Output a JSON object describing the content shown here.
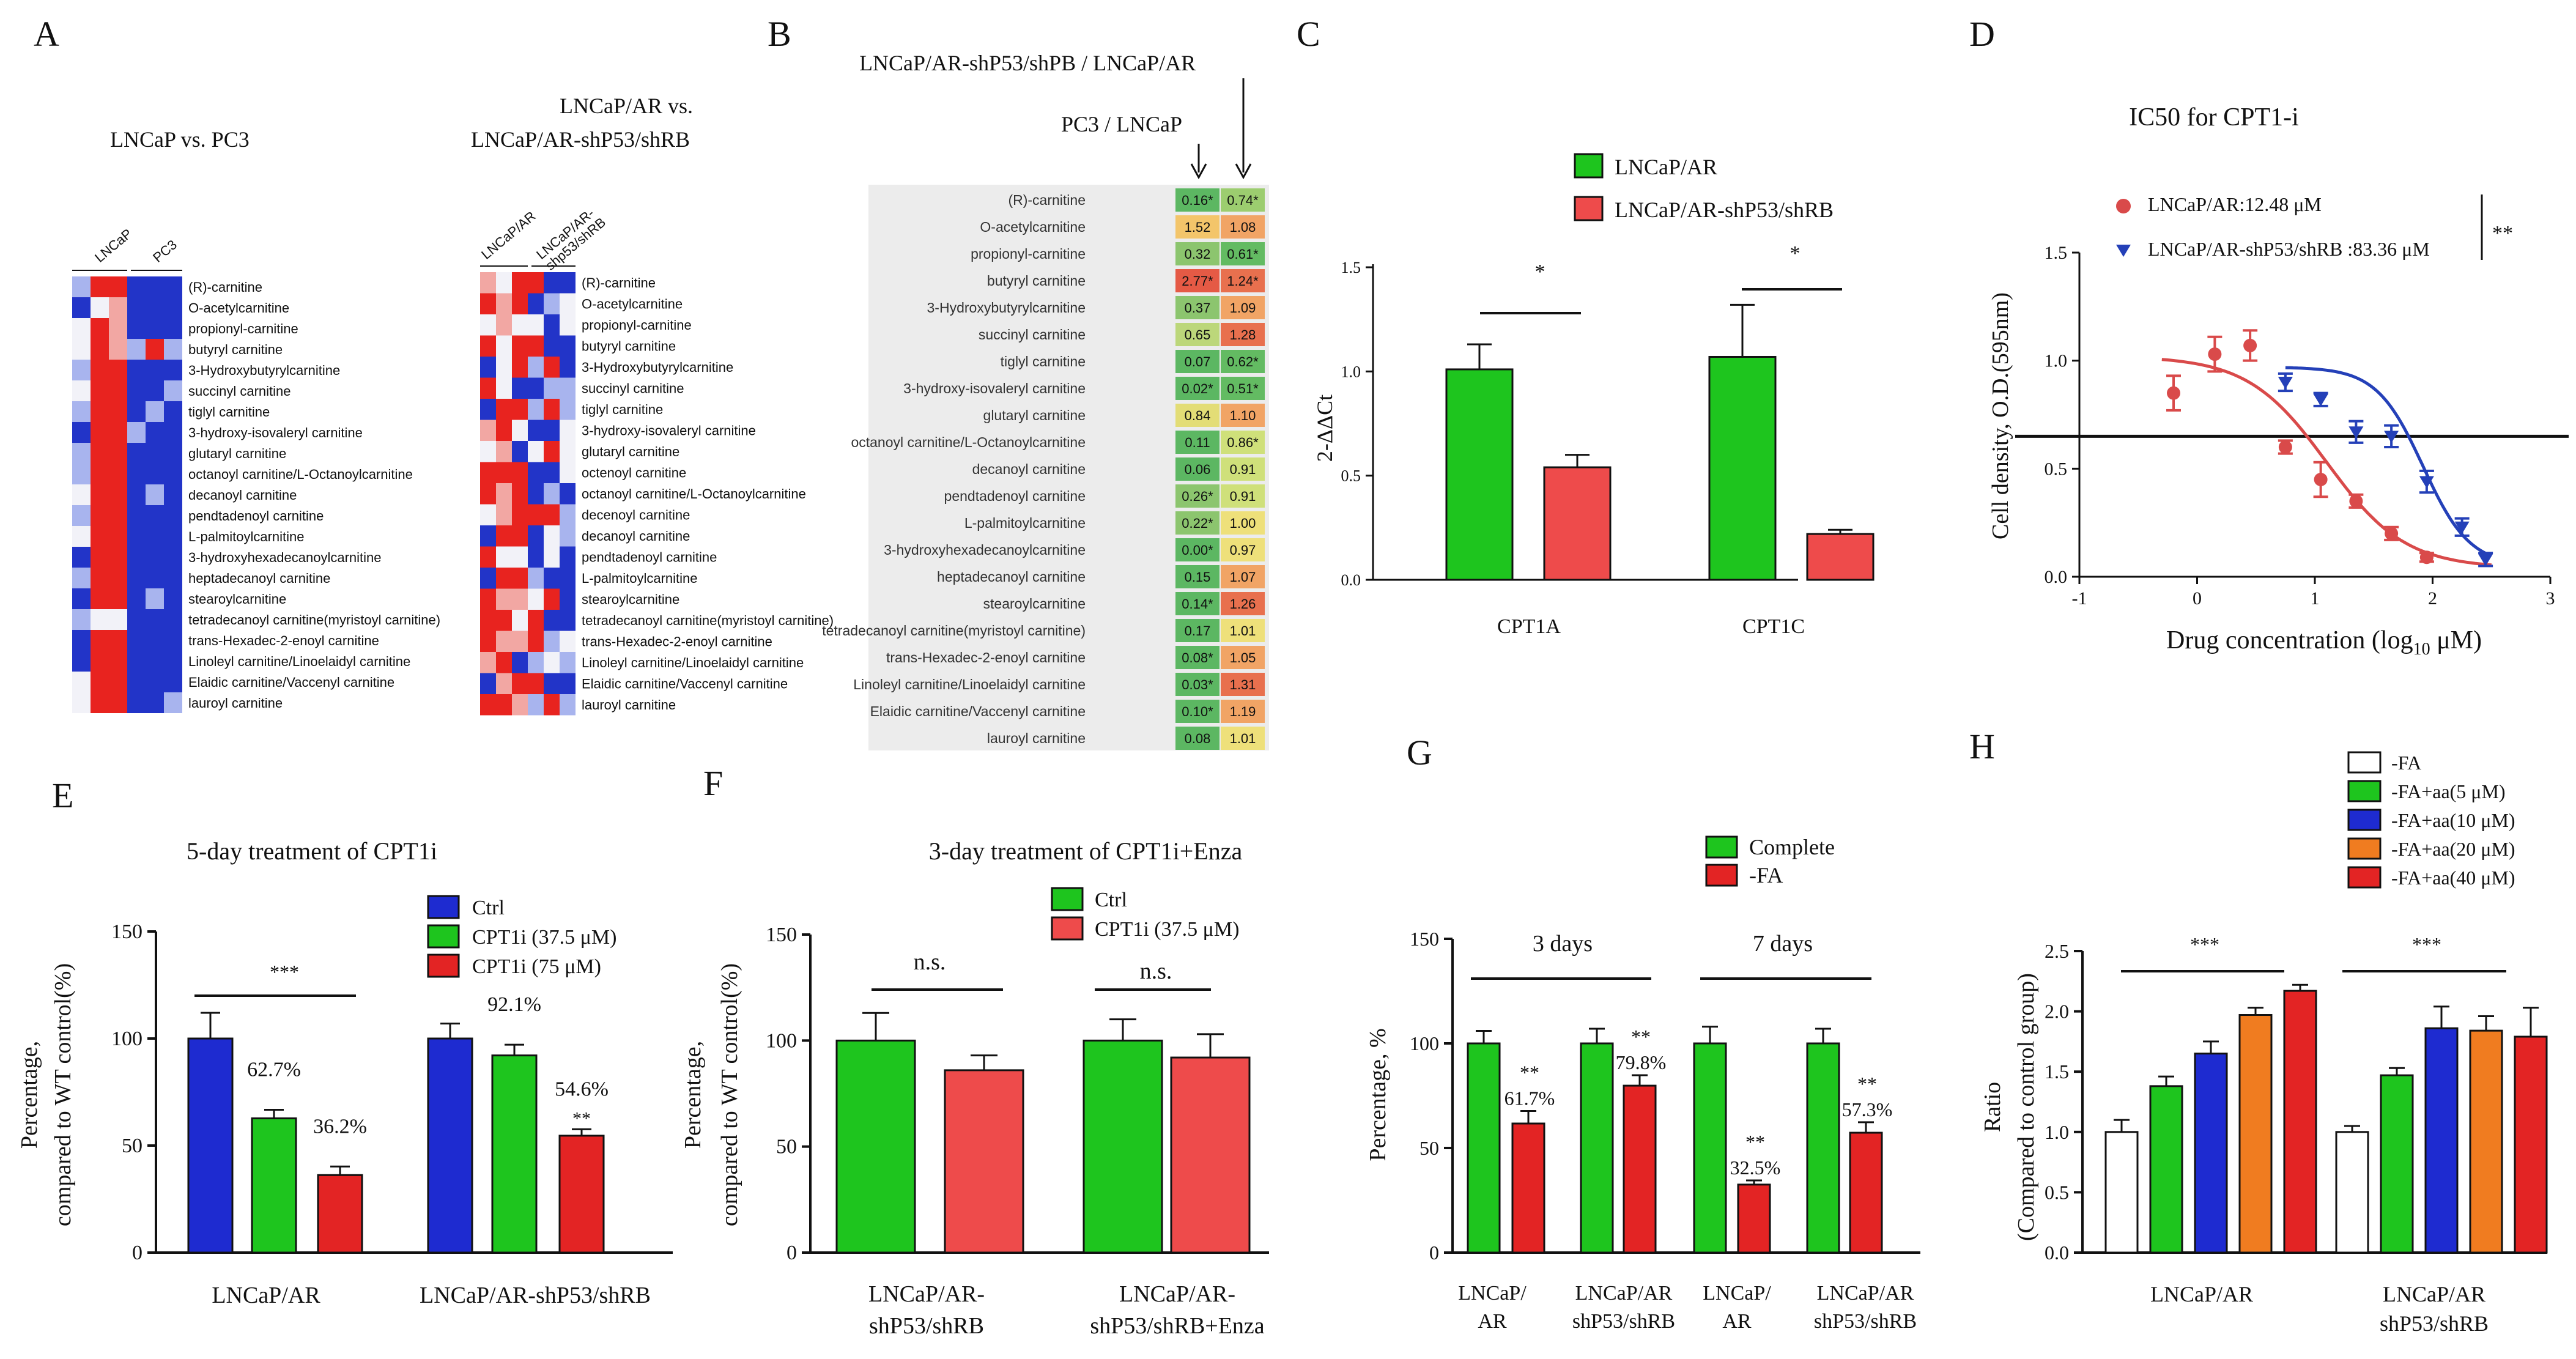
{
  "panels": {
    "A": {
      "letter": "A",
      "left_title": "LNCaP  vs. PC3",
      "right_title_1": "LNCaP/AR   vs.",
      "right_title_2": "LNCaP/AR-shP53/shRB",
      "left_col_labels": [
        "LNCaP",
        "PC3"
      ],
      "right_col_labels": [
        "LNCaP/AR",
        "LNCaP/AR-",
        "shp53/shRB"
      ],
      "left_rows": [
        "(R)-carnitine",
        "O-acetylcarnitine",
        "propionyl-carnitine",
        "butyryl carnitine",
        "3-Hydroxybutyrylcarnitine",
        "succinyl carnitine",
        "tiglyl carnitine",
        "3-hydroxy-isovaleryl carnitine",
        "glutaryl carnitine",
        "octanoyl carnitine/L-Octanoylcarnitine",
        "decanoyl carnitine",
        "pendtadenoyl carnitine",
        "L-palmitoylcarnitine",
        "3-hydroxyhexadecanoylcarnitine",
        "heptadecanoyl carnitine",
        "stearoylcarnitine",
        "tetradecanoyl carnitine(myristoyl carnitine)",
        "trans-Hexadec-2-enoyl carnitine",
        "Linoleyl carnitine/Linoelaidyl carnitine",
        "Elaidic carnitine/Vaccenyl carnitine",
        "lauroyl carnitine"
      ],
      "right_rows": [
        "(R)-carnitine",
        "O-acetylcarnitine",
        "propionyl-carnitine",
        "butyryl carnitine",
        "3-Hydroxybutyrylcarnitine",
        "succinyl carnitine",
        "tiglyl carnitine",
        "3-hydroxy-isovaleryl carnitine",
        "glutaryl carnitine",
        "octenoyl carnitine",
        "octanoyl carnitine/L-Octanoylcarnitine",
        "decenoyl carnitine",
        "decanoyl carnitine",
        "pendtadenoyl carnitine",
        "L-palmitoylcarnitine",
        "stearoylcarnitine",
        "tetradecanoyl carnitine(myristoyl carnitine)",
        "trans-Hexadec-2-enoyl carnitine",
        "Linoleyl carnitine/Linoelaidyl carnitine",
        "Elaidic carnitine/Vaccenyl carnitine",
        "lauroyl carnitine"
      ]
    },
    "B": {
      "letter": "B",
      "top_label": "LNCaP/AR-shP53/shPB   /  LNCaP/AR",
      "second_label": "PC3  / LNCaP",
      "rows": [
        {
          "name": "(R)-carnitine",
          "v1": "0.16*",
          "v2": "0.74*"
        },
        {
          "name": "O-acetylcarnitine",
          "v1": "1.52",
          "v2": "1.08"
        },
        {
          "name": "propionyl-carnitine",
          "v1": "0.32",
          "v2": "0.61*"
        },
        {
          "name": "butyryl carnitine",
          "v1": "2.77*",
          "v2": "1.24*"
        },
        {
          "name": "3-Hydroxybutyrylcarnitine",
          "v1": "0.37",
          "v2": "1.09"
        },
        {
          "name": "succinyl carnitine",
          "v1": "0.65",
          "v2": "1.28"
        },
        {
          "name": "tiglyl carnitine",
          "v1": "0.07",
          "v2": "0.62*"
        },
        {
          "name": "3-hydroxy-isovaleryl carnitine",
          "v1": "0.02*",
          "v2": "0.51*"
        },
        {
          "name": "glutaryl carnitine",
          "v1": "0.84",
          "v2": "1.10"
        },
        {
          "name": "octanoyl carnitine/L-Octanoylcarnitine",
          "v1": "0.11",
          "v2": "0.86*"
        },
        {
          "name": "decanoyl carnitine",
          "v1": "0.06",
          "v2": "0.91"
        },
        {
          "name": "pendtadenoyl carnitine",
          "v1": "0.26*",
          "v2": "0.91"
        },
        {
          "name": "L-palmitoylcarnitine",
          "v1": "0.22*",
          "v2": "1.00"
        },
        {
          "name": "3-hydroxyhexadecanoylcarnitine",
          "v1": "0.00*",
          "v2": "0.97"
        },
        {
          "name": "heptadecanoyl carnitine",
          "v1": "0.15",
          "v2": "1.07"
        },
        {
          "name": "stearoylcarnitine",
          "v1": "0.14*",
          "v2": "1.26"
        },
        {
          "name": "tetradecanoyl carnitine(myristoyl carnitine)",
          "v1": "0.17",
          "v2": "1.01"
        },
        {
          "name": "trans-Hexadec-2-enoyl carnitine",
          "v1": "0.08*",
          "v2": "1.05"
        },
        {
          "name": "Linoleyl carnitine/Linoelaidyl carnitine",
          "v1": "0.03*",
          "v2": "1.31"
        },
        {
          "name": "Elaidic carnitine/Vaccenyl carnitine",
          "v1": "0.10*",
          "v2": "1.19"
        },
        {
          "name": "lauroyl carnitine",
          "v1": "0.08",
          "v2": "1.01"
        }
      ]
    },
    "C": {
      "letter": "C"
    },
    "D": {
      "letter": "D"
    },
    "E": {
      "letter": "E"
    },
    "F": {
      "letter": "F"
    },
    "G": {
      "letter": "G"
    },
    "H": {
      "letter": "H"
    }
  },
  "chart_data": [
    {
      "id": "C",
      "type": "bar",
      "ylabel": "2-ΔΔCt",
      "ylim": [
        0,
        1.5
      ],
      "yticks": [
        "0.0",
        "0.5",
        "1.0",
        "1.5"
      ],
      "categories": [
        "CPT1A",
        "CPT1C"
      ],
      "series": [
        {
          "name": "LNCaP/AR",
          "color": "#1ec51e",
          "values": [
            1.01,
            1.07
          ],
          "errors": [
            0.12,
            0.25
          ]
        },
        {
          "name": "LNCaP/AR-shP53/shRB",
          "color": "#ee4b4b",
          "values": [
            0.54,
            0.22
          ],
          "errors": [
            0.06,
            0.02
          ]
        }
      ],
      "sig": [
        "*",
        "*"
      ]
    },
    {
      "id": "D",
      "type": "scatter",
      "title": "IC50 for CPT1-i",
      "xlabel_main": "Drug concentration (log",
      "xlabel_sub": "10",
      "xlabel_end": " μM)",
      "ylabel": "Cell density,  O.D.(595nm)",
      "xlim": [
        -1,
        3
      ],
      "ylim": [
        0,
        1.5
      ],
      "xticks": [
        "-1",
        "0",
        "1",
        "2",
        "3"
      ],
      "yticks": [
        "0.0",
        "0.5",
        "1.0",
        "1.5"
      ],
      "threshold": 0.65,
      "series": [
        {
          "name": "LNCaP/AR:12.48 μM",
          "color": "#d94a4a",
          "marker": "circle",
          "x": [
            -0.2,
            0.15,
            0.45,
            0.75,
            1.05,
            1.35,
            1.65,
            1.95
          ],
          "y": [
            0.85,
            1.03,
            1.07,
            0.6,
            0.45,
            0.35,
            0.2,
            0.09
          ],
          "err": [
            0.08,
            0.08,
            0.07,
            0.03,
            0.08,
            0.03,
            0.03,
            0.02
          ],
          "fit": {
            "top": 1.02,
            "bottom": 0.04,
            "logic50": 1.1,
            "slope": 1.3
          }
        },
        {
          "name": "LNCaP/AR-shP53/shRB :83.36 μM",
          "color": "#2440b8",
          "marker": "triangle",
          "x": [
            0.75,
            1.05,
            1.35,
            1.65,
            1.95,
            2.25,
            2.45
          ],
          "y": [
            0.9,
            0.82,
            0.67,
            0.65,
            0.44,
            0.23,
            0.08
          ],
          "err": [
            0.04,
            0.03,
            0.05,
            0.05,
            0.05,
            0.04,
            0.03
          ],
          "fit": {
            "top": 0.97,
            "bottom": 0.05,
            "logic50": 1.92,
            "slope": 2.2
          }
        }
      ],
      "sig": "**"
    },
    {
      "id": "E",
      "type": "bar",
      "title": "5-day treatment  of CPT1i",
      "ylabel1": "Percentage,",
      "ylabel2": "compared to WT control(%)",
      "ylim": [
        0,
        150
      ],
      "yticks": [
        "0",
        "50",
        "100",
        "150"
      ],
      "categories": [
        "LNCaP/AR",
        "LNCaP/AR-shP53/shRB"
      ],
      "series": [
        {
          "name": "Ctrl",
          "color": "#1e2bd0",
          "values": [
            100,
            100
          ],
          "errors": [
            12,
            7
          ]
        },
        {
          "name": "CPT1i (37.5 μM)",
          "color": "#1ec51e",
          "values": [
            62.7,
            92.1
          ],
          "errors": [
            4,
            5
          ]
        },
        {
          "name": "CPT1i (75 μM)",
          "color": "#e32424",
          "values": [
            36.2,
            54.6
          ],
          "errors": [
            4,
            3
          ]
        }
      ],
      "bar_labels": [
        [
          "",
          "62.7%",
          "36.2%"
        ],
        [
          "",
          "92.1%",
          "54.6%"
        ]
      ],
      "bar_stars": [
        [
          "",
          "",
          ""
        ],
        [
          "",
          "",
          "**"
        ]
      ],
      "sig": "***"
    },
    {
      "id": "F",
      "type": "bar",
      "title": "3-day treatment  of CPT1i+Enza",
      "ylabel1": "Percentage,",
      "ylabel2": "compared to WT control(%)",
      "ylim": [
        0,
        150
      ],
      "yticks": [
        "0",
        "50",
        "100",
        "150"
      ],
      "categories": [
        "LNCaP/AR-|shP53/shRB",
        "LNCaP/AR-|shP53/shRB+Enza"
      ],
      "series": [
        {
          "name": "Ctrl",
          "color": "#1ec51e",
          "values": [
            100,
            100
          ],
          "errors": [
            13,
            10
          ]
        },
        {
          "name": "CPT1i (37.5 μM)",
          "color": "#ee4b4b",
          "values": [
            86,
            92
          ],
          "errors": [
            7,
            11
          ]
        }
      ],
      "sig": [
        "n.s.",
        "n.s."
      ]
    },
    {
      "id": "G",
      "type": "bar",
      "ylabel": "Percentage, %",
      "ylim": [
        0,
        150
      ],
      "yticks": [
        "0",
        "50",
        "100",
        "150"
      ],
      "categories": [
        "LNCaP/|AR",
        "LNCaP/AR|shP53/shRB",
        "LNCaP/|AR",
        "LNCaP/AR|shP53/shRB"
      ],
      "groups": [
        "3 days",
        "7 days"
      ],
      "series": [
        {
          "name": "Complete",
          "color": "#1ec51e",
          "values": [
            100,
            100,
            100,
            100
          ],
          "errors": [
            6,
            7,
            8,
            7
          ]
        },
        {
          "name": "-FA",
          "color": "#e32424",
          "values": [
            61.7,
            79.8,
            32.5,
            57.3
          ],
          "errors": [
            6,
            5,
            2,
            5
          ]
        }
      ],
      "bar_labels": [
        "61.7%",
        "79.8%",
        "32.5%",
        "57.3%"
      ],
      "bar_stars": [
        "**",
        "**",
        "**",
        "**"
      ]
    },
    {
      "id": "H",
      "type": "bar",
      "ylabel1": "Ratio",
      "ylabel2": "(Compared to control group)",
      "ylim": [
        0,
        2.5
      ],
      "yticks": [
        "0.0",
        "0.5",
        "1.0",
        "1.5",
        "2.0",
        "2.5"
      ],
      "categories": [
        "LNCaP/AR",
        "LNCaP/AR|shP53/shRB"
      ],
      "series": [
        {
          "name": "-FA",
          "color": "#ffffff",
          "values": [
            1.0,
            1.0
          ],
          "errors": [
            0.1,
            0.05
          ]
        },
        {
          "name": "-FA+aa(5 μM)",
          "color": "#1ec51e",
          "values": [
            1.38,
            1.47
          ],
          "errors": [
            0.08,
            0.06
          ]
        },
        {
          "name": "-FA+aa(10 μM)",
          "color": "#1e2bd0",
          "values": [
            1.65,
            1.86
          ],
          "errors": [
            0.1,
            0.18
          ]
        },
        {
          "name": "-FA+aa(20 μM)",
          "color": "#f07c20",
          "values": [
            1.97,
            1.84
          ],
          "errors": [
            0.06,
            0.12
          ]
        },
        {
          "name": "-FA+aa(40 μM)",
          "color": "#e32424",
          "values": [
            2.17,
            1.79
          ],
          "errors": [
            0.05,
            0.24
          ]
        }
      ],
      "sig": [
        "***",
        "***"
      ]
    }
  ]
}
